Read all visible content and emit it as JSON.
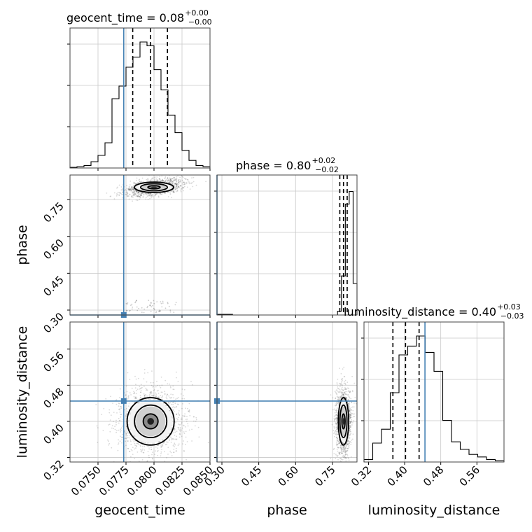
{
  "chart_data": {
    "type": "corner",
    "grid": true,
    "parameters": [
      "geocent_time",
      "phase",
      "luminosity_distance"
    ],
    "truth_line_color": "#4682b4",
    "truths": {
      "geocent_time": 0.0773,
      "phase": 0.28,
      "luminosity_distance": 0.445
    },
    "panels": [
      {
        "param": "geocent_time",
        "title": {
          "prefix": "geocent_time = 0.08",
          "sup": "+0.00",
          "sub": "−0.00"
        },
        "xlim": [
          0.0725,
          0.085
        ],
        "bin_heights": [
          0.005,
          0.01,
          0.02,
          0.05,
          0.1,
          0.2,
          0.55,
          0.65,
          0.8,
          0.88,
          1.0,
          0.97,
          0.78,
          0.62,
          0.42,
          0.28,
          0.14,
          0.06,
          0.02,
          0.01
        ],
        "quantiles": [
          0.0781,
          0.0797,
          0.0812
        ]
      },
      {
        "param": "phase",
        "title": {
          "prefix": "phase = 0.80",
          "sup": "+0.02",
          "sub": "−0.02"
        },
        "xlim": [
          0.28,
          0.85
        ],
        "bin_heights": [
          0.005,
          0.005,
          0.005,
          0.005,
          0,
          0,
          0,
          0,
          0,
          0,
          0,
          0,
          0,
          0,
          0,
          0,
          0,
          0,
          0,
          0,
          0,
          0,
          0,
          0,
          0,
          0,
          0,
          0,
          0,
          0,
          0,
          0.03,
          0.31,
          0.88,
          0.98,
          0.25
        ],
        "quantiles": [
          0.78,
          0.795,
          0.81
        ]
      },
      {
        "param": "luminosity_distance",
        "title": {
          "prefix": "luminosity_distance = 0.40",
          "sup": "+0.03",
          "sub": "−0.03"
        },
        "xlim": [
          0.31,
          0.62
        ],
        "bin_heights": [
          0.02,
          0.15,
          0.26,
          0.55,
          0.85,
          0.92,
          1.0,
          0.87,
          0.72,
          0.33,
          0.16,
          0.1,
          0.06,
          0.04,
          0.02,
          0.01
        ],
        "quantiles": [
          0.374,
          0.402,
          0.432
        ]
      }
    ],
    "axes": {
      "geocent_time": {
        "range": [
          0.0725,
          0.085
        ],
        "ticks": [
          0.075,
          0.0775,
          0.08,
          0.0825,
          0.085
        ],
        "tick_labels": [
          "0.0750",
          "0.0775",
          "0.0800",
          "0.0825",
          "0.0850"
        ]
      },
      "phase": {
        "range": [
          0.28,
          0.85
        ],
        "ticks": [
          0.3,
          0.45,
          0.6,
          0.75
        ],
        "tick_labels": [
          "0.30",
          "0.45",
          "0.60",
          "0.75"
        ]
      },
      "luminosity_distance": {
        "range": [
          0.31,
          0.62
        ],
        "ticks": [
          0.32,
          0.4,
          0.48,
          0.56
        ],
        "tick_labels": [
          "0.32",
          "0.40",
          "0.48",
          "0.56"
        ]
      }
    },
    "axis_labels": {
      "geocent_time": "geocent_time",
      "phase": "phase",
      "luminosity_distance": "luminosity_distance"
    },
    "joint_2d": {
      "phase_vs_geocent_time": {
        "peak": {
          "x": 0.08,
          "y": 0.8
        },
        "spread": {
          "x": 0.001,
          "y": 0.012
        },
        "tilt": 0.35,
        "secondary_tail": {
          "x_range": [
            0.0775,
            0.082
          ],
          "y_range": [
            0.29,
            0.34
          ]
        }
      },
      "luminosity_distance_vs_geocent_time": {
        "peak": {
          "x": 0.0797,
          "y": 0.4
        },
        "spread": {
          "x": 0.0012,
          "y": 0.03
        }
      },
      "luminosity_distance_vs_phase": {
        "peak": {
          "x": 0.795,
          "y": 0.4
        },
        "spread": {
          "x": 0.012,
          "y": 0.03
        }
      }
    }
  }
}
